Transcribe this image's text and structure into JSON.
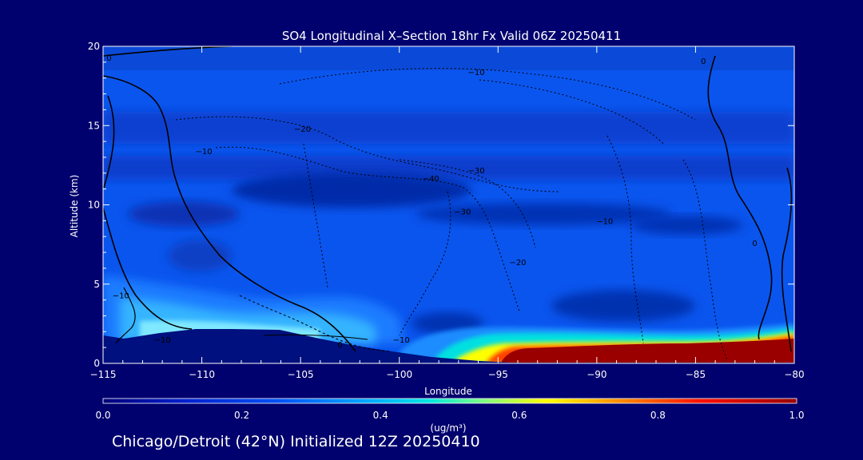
{
  "chart_data": {
    "type": "heatmap",
    "title": "SO4 Longitudinal X–Section 18hr  Fx Valid 06Z 20250411",
    "xlabel": "Longitude",
    "ylabel": "Altitude (km)",
    "xlim": [
      -115,
      -80
    ],
    "ylim": [
      0,
      20
    ],
    "x_ticks": [
      -115,
      -110,
      -105,
      -100,
      -95,
      -90,
      -85,
      -80
    ],
    "x_tick_labels": [
      "−115",
      "−110",
      "−105",
      "−100",
      "−95",
      "−90",
      "−85",
      "−80"
    ],
    "y_ticks": [
      0,
      5,
      10,
      15,
      20
    ],
    "y_tick_labels": [
      "0",
      "5",
      "10",
      "15",
      "20"
    ],
    "colorbar": {
      "min": 0.0,
      "max": 1.0,
      "ticks": [
        0.0,
        0.2,
        0.4,
        0.6,
        0.8,
        1.0
      ],
      "tick_labels": [
        "0.0",
        "0.2",
        "0.4",
        "0.6",
        "0.8",
        "1.0"
      ],
      "unit_label": "(ug/m³)",
      "colors": [
        "#000080",
        "#0028d8",
        "#0050f0",
        "#00a0ff",
        "#00e0e0",
        "#a0ff60",
        "#ffff00",
        "#ff8000",
        "#ff0000",
        "#800000"
      ]
    },
    "contour_labels": [
      {
        "text": "−10",
        "lon": -96.1,
        "alt": 18.4
      },
      {
        "text": "−20",
        "lon": -104.9,
        "alt": 14.8
      },
      {
        "text": "−10",
        "lon": -109.9,
        "alt": 13.4
      },
      {
        "text": "−30",
        "lon": -96.1,
        "alt": 12.2
      },
      {
        "text": "−40",
        "lon": -98.4,
        "alt": 11.7
      },
      {
        "text": "−30",
        "lon": -96.8,
        "alt": 9.6
      },
      {
        "text": "−10",
        "lon": -89.6,
        "alt": 9.0
      },
      {
        "text": "−20",
        "lon": -94.0,
        "alt": 6.4
      },
      {
        "text": "−10",
        "lon": -114.1,
        "alt": 4.3
      },
      {
        "text": "−10",
        "lon": -112.0,
        "alt": 1.5
      },
      {
        "text": "−10",
        "lon": -99.9,
        "alt": 1.5
      },
      {
        "text": "0",
        "lon": -103.0,
        "alt": 1.2
      },
      {
        "text": "0",
        "lon": -82.0,
        "alt": 7.6
      },
      {
        "text": "0",
        "lon": -114.7,
        "alt": 19.3
      },
      {
        "text": "0",
        "lon": -84.6,
        "alt": 19.1
      }
    ],
    "concentration_summary": [
      {
        "region": "surface layer lon -96 to -80, alt 0-1.5 km",
        "value": 1.0
      },
      {
        "region": "surface layer lon -96 to -94, alt 0-1 km",
        "value": 0.6
      },
      {
        "region": "low layer lon -114 to -102, alt 1.5-4 km",
        "value": 0.3
      },
      {
        "region": "mid/upper troposphere lon -110 to -85, alt 8-12 km",
        "value": 0.05
      },
      {
        "region": "background",
        "value": 0.15
      }
    ]
  },
  "footer": "Chicago/Detroit (42°N) Initialized 12Z 20250410"
}
